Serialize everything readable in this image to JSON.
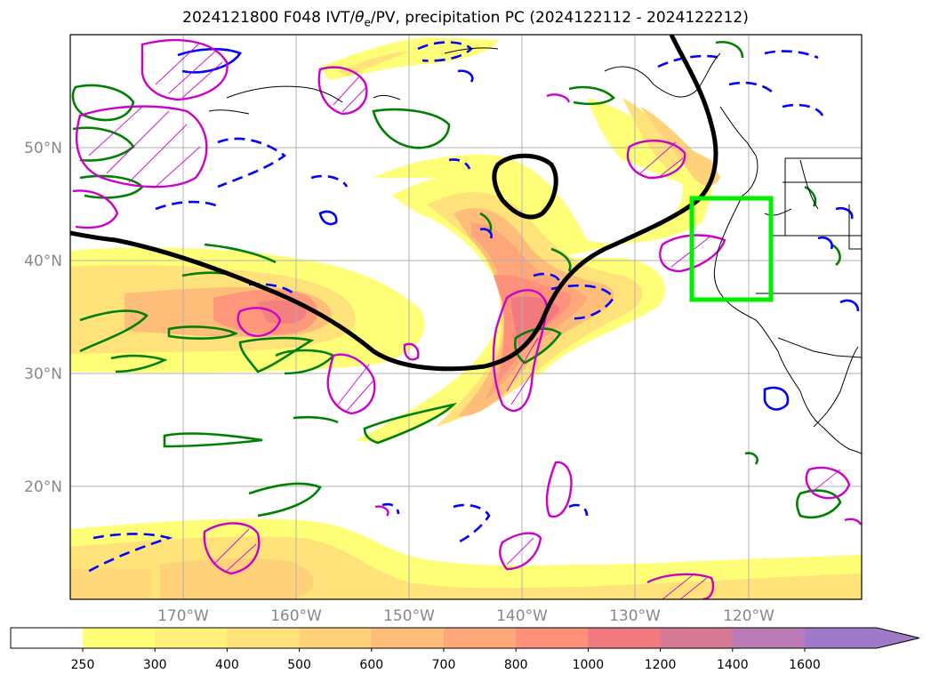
{
  "title": {
    "prefix": "2024121800 F048 IVT/",
    "theta": "θ",
    "theta_sub": "e",
    "suffix": "/PV, precipitation PC (2024122112 - 2024122212)"
  },
  "map": {
    "projection": "plate-carree",
    "lon_range": [
      -180,
      -110
    ],
    "lat_range": [
      10,
      60
    ],
    "grid": true,
    "lat_labels": [
      "50°N",
      "40°N",
      "30°N",
      "20°N"
    ],
    "lon_labels": [
      "170°W",
      "160°W",
      "150°W",
      "140°W",
      "130°W",
      "120°W"
    ],
    "highlight_box": {
      "color": "#00ee00",
      "lon": [
        -125,
        -118
      ],
      "lat": [
        36.5,
        45.5
      ]
    },
    "contour_colors": {
      "pv": "#000000",
      "theta_e_pos": "#008000",
      "theta_e_neg": "#0000ff",
      "precip": "#cc00cc"
    }
  },
  "colorbar": {
    "levels": [
      "250",
      "300",
      "400",
      "500",
      "600",
      "700",
      "800",
      "1000",
      "1200",
      "1400",
      "1600"
    ],
    "colors": [
      "#ffff77",
      "#fff07a",
      "#ffe27a",
      "#ffd27a",
      "#ffbd7a",
      "#ffa77a",
      "#ff907a",
      "#f07a80",
      "#d67a95",
      "#b97ab5",
      "#a07ac9"
    ],
    "extend": "max"
  }
}
